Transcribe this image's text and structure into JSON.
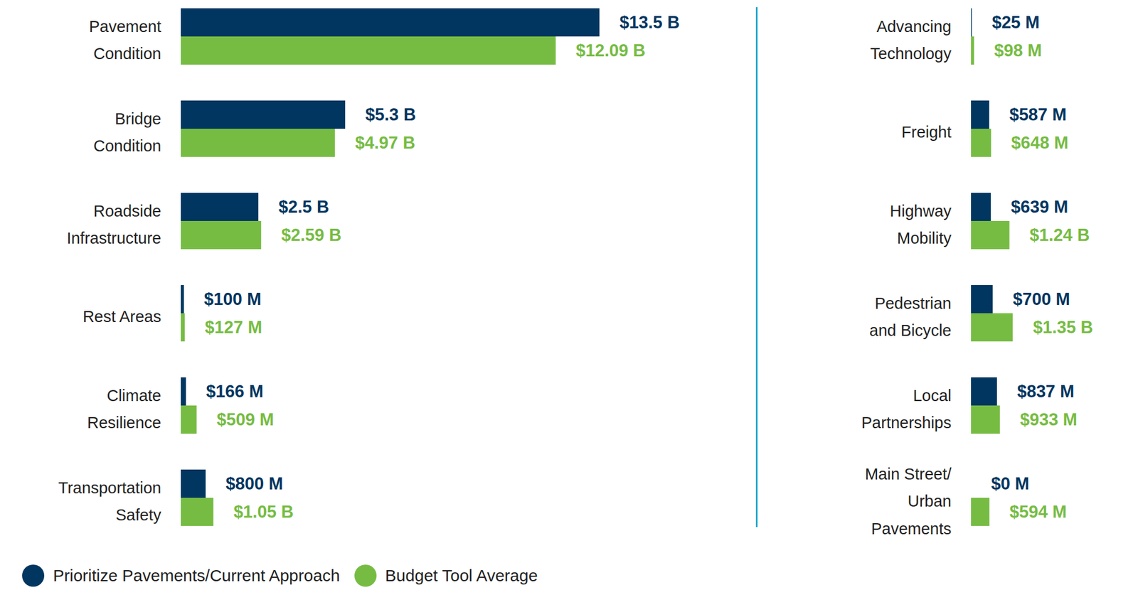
{
  "chart_data": [
    {
      "type": "bar",
      "orientation": "horizontal",
      "data_labels": true,
      "tick_labels": false,
      "legend": "bottom",
      "categories": [
        "Pavement Condition",
        "Bridge Condition",
        "Roadside Infrastructure",
        "Rest Areas",
        "Climate Resilience",
        "Transportation Safety"
      ],
      "xlim": [
        0,
        13500
      ],
      "series": [
        {
          "name": "Prioritize Pavements/Current Approach",
          "color": "#003660",
          "values": [
            13500,
            5300,
            2500,
            100,
            166,
            800
          ],
          "value_labels": [
            "$13.5 B",
            "$5.3 B",
            "$2.5 B",
            "$100 M",
            "$166 M",
            "$800 M"
          ]
        },
        {
          "name": "Budget Tool Average",
          "color": "#76bc43",
          "values": [
            12090,
            4970,
            2590,
            127,
            509,
            1050
          ],
          "value_labels": [
            "$12.09 B",
            "$4.97 B",
            "$2.59 B",
            "$127 M",
            "$509 M",
            "$1.05 B"
          ]
        }
      ]
    },
    {
      "type": "bar",
      "orientation": "horizontal",
      "data_labels": true,
      "tick_labels": false,
      "legend": "bottom",
      "categories": [
        "Advancing Technology",
        "Freight",
        "Highway Mobility",
        "Pedestrian and Bicycle",
        "Local Partnerships",
        "Main Street/ Urban Pavements"
      ],
      "xlim": [
        0,
        1350
      ],
      "series": [
        {
          "name": "Prioritize Pavements/Current Approach",
          "color": "#003660",
          "values": [
            25,
            587,
            639,
            700,
            837,
            0
          ],
          "value_labels": [
            "$25 M",
            "$587 M",
            "$639 M",
            "$700 M",
            "$837 M",
            "$0 M"
          ]
        },
        {
          "name": "Budget Tool Average",
          "color": "#76bc43",
          "values": [
            98,
            648,
            1240,
            1350,
            933,
            594
          ],
          "value_labels": [
            "$98 M",
            "$648 M",
            "$1.24 B",
            "$1.35 B",
            "$933 M",
            "$594 M"
          ]
        }
      ]
    }
  ]
}
